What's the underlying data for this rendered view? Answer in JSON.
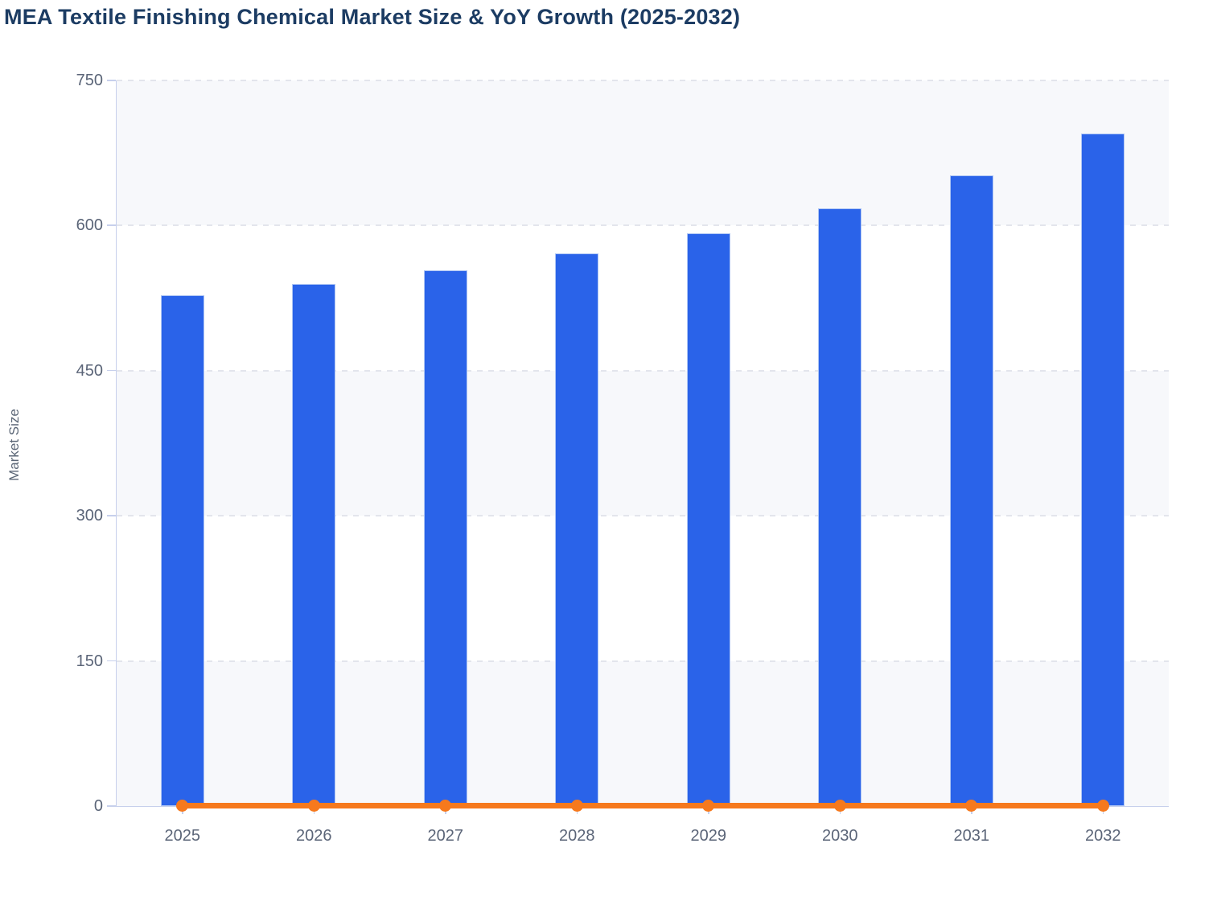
{
  "title": "MEA Textile Finishing Chemical Market Size & YoY Growth (2025-2032)",
  "colors": {
    "title_text": "#1c3c63",
    "axis_text": "#5b6578",
    "axis_line": "#c7d0ec",
    "gridline": "#e3e5ec",
    "band_fill": "#f7f8fb",
    "bar_fill": "#2a63e9",
    "line_stroke": "#f6791d"
  },
  "chart_data": {
    "type": "bar",
    "title": "MEA Textile Finishing Chemical Market Size & YoY Growth (2025-2032)",
    "categories": [
      "2025",
      "2026",
      "2027",
      "2028",
      "2029",
      "2030",
      "2031",
      "2032"
    ],
    "series": [
      {
        "name": "Market Size",
        "type": "bar",
        "values": [
          528,
          540,
          554,
          571,
          592,
          618,
          652,
          695
        ]
      },
      {
        "name": "YoY Growth",
        "type": "line",
        "values": [
          0,
          0,
          0,
          0,
          0,
          0,
          0,
          0
        ],
        "note": "Orange line with round markers drawn flat at the 0 baseline of the Market Size axis; growth percentages are not labeled in the image"
      }
    ],
    "xlabel": "",
    "ylabel": "Market Size",
    "y_ticks": [
      750,
      600,
      450,
      300,
      150,
      0
    ],
    "ylim": [
      0,
      750
    ],
    "grid": "dashed horizontal gridlines with alternating light band fill",
    "legend": "none"
  }
}
